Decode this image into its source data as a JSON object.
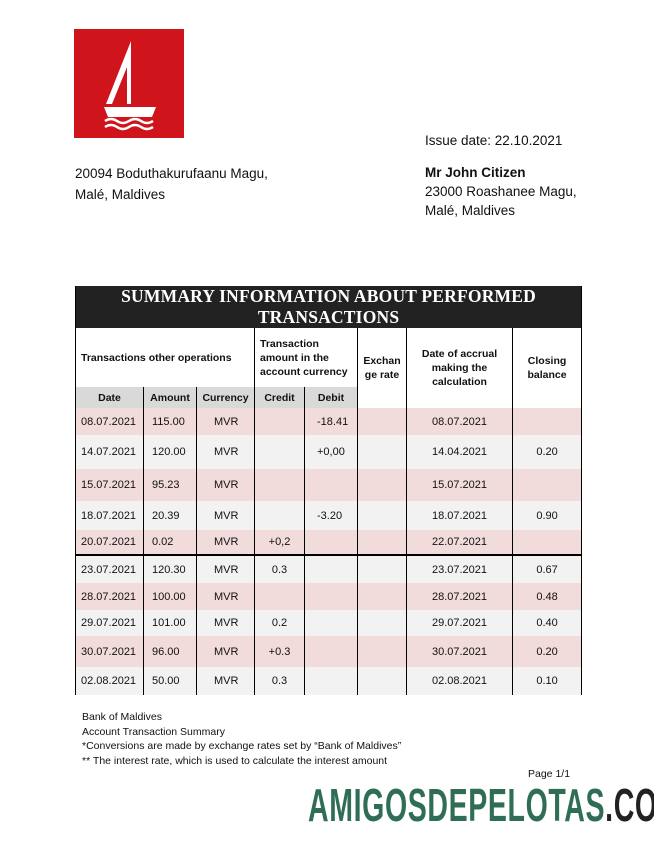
{
  "header": {
    "issue_date": "Issue date: 22.10.2021",
    "bank_address": [
      "20094 Boduthakurufaanu Magu,",
      "Malé, Maldives"
    ],
    "recipient_name": "Mr John Citizen",
    "recipient_address": [
      "23000 Roashanee Magu,",
      "Malé, Maldives"
    ],
    "logo_color": "#d0141b"
  },
  "table": {
    "title": "SUMMARY INFORMATION ABOUT PERFORMED TRANSACTIONS",
    "group_headers": {
      "other": "Transactions other operations",
      "amount": "Transaction amount in the account currency",
      "exchange": "Exchan ge rate",
      "accrual": "Date of accrual making the calculation",
      "closing": "Closing balance"
    },
    "columns": [
      "Date",
      "Amount",
      "Currency",
      "Credit",
      "Debit"
    ],
    "rows": [
      [
        "08.07.2021",
        "115.00",
        "MVR",
        "",
        "-18.41",
        "",
        "08.07.2021",
        ""
      ],
      [
        "14.07.2021",
        "120.00",
        "MVR",
        "",
        "+0,00",
        "",
        "14.04.2021",
        "0.20"
      ],
      [
        "15.07.2021",
        "95.23",
        "MVR",
        "",
        "",
        "",
        "15.07.2021",
        ""
      ],
      [
        "18.07.2021",
        "20.39",
        "MVR",
        "",
        "-3.20",
        "",
        "18.07.2021",
        "0.90"
      ],
      [
        "20.07.2021",
        "0.02",
        "MVR",
        "+0,2",
        "",
        "",
        "22.07.2021",
        ""
      ],
      [
        "23.07.2021",
        "120.30",
        "MVR",
        "0.3",
        "",
        "",
        "23.07.2021",
        "0.67"
      ],
      [
        "28.07.2021",
        "100.00",
        "MVR",
        "",
        "",
        "",
        "28.07.2021",
        "0.48"
      ],
      [
        "29.07.2021",
        "101.00",
        "MVR",
        "0.2",
        "",
        "",
        "29.07.2021",
        "0.40"
      ],
      [
        "30.07.2021",
        "96.00",
        "MVR",
        "+0.3",
        "",
        "",
        "30.07.2021",
        "0.20"
      ],
      [
        "02.08.2021",
        "50.00",
        "MVR",
        "0.3",
        "",
        "",
        "02.08.2021",
        "0.10"
      ]
    ]
  },
  "footer": {
    "lines": [
      "Bank of Maldives",
      "Account Transaction Summary",
      "*Conversions are made by exchange rates set by “Bank of Maldives”",
      "** The interest rate, which is used to calculate the interest amount"
    ],
    "page": "Page 1/1"
  },
  "watermark": {
    "main": "AMIGOSDEPELOTAS",
    "suffix": ".COM",
    "color": "#2f6e55"
  }
}
